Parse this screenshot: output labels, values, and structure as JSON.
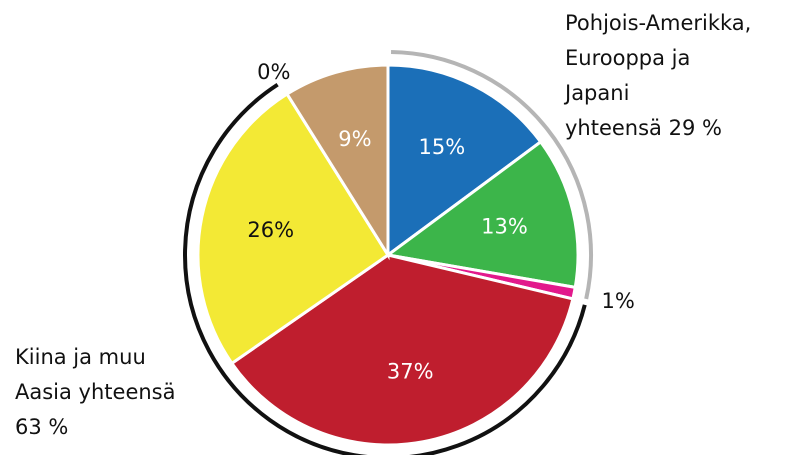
{
  "chart_data": {
    "type": "pie",
    "categories": [
      null,
      null,
      null,
      null,
      null,
      null,
      null
    ],
    "values": [
      15,
      13,
      1,
      37,
      26,
      0,
      9
    ],
    "value_labels": [
      "15%",
      "13%",
      "1%",
      "37%",
      "26%",
      "0%",
      "9%"
    ],
    "colors": [
      "#1b6fb8",
      "#3cb54a",
      "#e2198c",
      "#bf1e2e",
      "#f3e935",
      "#c49a6c",
      "#c49a6c"
    ],
    "annotations": [
      {
        "lines": [
          "Pohjois-Amerikka,",
          "Eurooppa ja",
          "Japani",
          "yhteensä 29 %"
        ]
      },
      {
        "lines": [
          "Kiina ja muu",
          "Aasia yhteensä",
          "63 %"
        ]
      }
    ]
  }
}
